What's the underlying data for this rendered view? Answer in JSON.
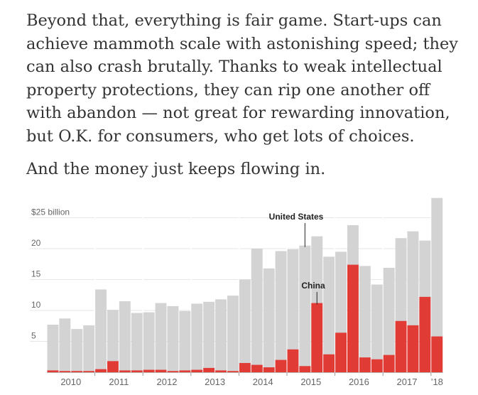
{
  "article": {
    "paragraph_1": "Beyond that, everything is fair game. Start-ups can achieve mammoth scale with astonishing speed; they can also crash brutally. Thanks to weak intellectual property protections, they can rip one another off with abandon — not great for rewarding innovation, but O.K. for consumers, who get lots of choices.",
    "paragraph_2": "And the money just keeps flowing in."
  },
  "colors": {
    "us_bar": "#d3d3d3",
    "china_bar": "#e13b35",
    "text": "#333333",
    "axis_label": "#666666",
    "gridline": "#e6e6e6"
  },
  "chart_data": {
    "type": "bar",
    "title": "",
    "xlabel": "",
    "ylabel": "",
    "ylim": [
      0,
      28
    ],
    "y_ticks": [
      {
        "value": 25,
        "label": "$25 billion"
      },
      {
        "value": 20,
        "label": "20"
      },
      {
        "value": 15,
        "label": "15"
      },
      {
        "value": 10,
        "label": "10"
      },
      {
        "value": 5,
        "label": "5"
      }
    ],
    "year_labels": [
      "2010",
      "2011",
      "2012",
      "2013",
      "2014",
      "2015",
      "2016",
      "2017",
      "’18"
    ],
    "categories": [
      "2010 Q1",
      "2010 Q2",
      "2010 Q3",
      "2010 Q4",
      "2011 Q1",
      "2011 Q2",
      "2011 Q3",
      "2011 Q4",
      "2012 Q1",
      "2012 Q2",
      "2012 Q3",
      "2012 Q4",
      "2013 Q1",
      "2013 Q2",
      "2013 Q3",
      "2013 Q4",
      "2014 Q1",
      "2014 Q2",
      "2014 Q3",
      "2014 Q4",
      "2015 Q1",
      "2015 Q2",
      "2015 Q3",
      "2015 Q4",
      "2016 Q1",
      "2016 Q2",
      "2016 Q3",
      "2016 Q4",
      "2017 Q1",
      "2017 Q2",
      "2017 Q3",
      "2017 Q4",
      "2018 Q1"
    ],
    "series": [
      {
        "name": "United States",
        "values": [
          7.7,
          8.7,
          7.0,
          7.6,
          13.4,
          10.1,
          11.5,
          9.6,
          9.7,
          11.2,
          10.7,
          9.9,
          11.1,
          11.4,
          11.8,
          12.4,
          15.0,
          20.0,
          16.8,
          19.6,
          19.9,
          20.5,
          22.0,
          18.7,
          19.5,
          23.8,
          17.2,
          14.2,
          16.9,
          21.7,
          22.8,
          21.3,
          28.2
        ]
      },
      {
        "name": "China",
        "values": [
          0.3,
          0.2,
          0.2,
          0.2,
          0.5,
          1.8,
          0.3,
          0.3,
          0.4,
          0.4,
          0.2,
          0.3,
          0.4,
          0.7,
          0.3,
          0.2,
          1.5,
          1.2,
          0.8,
          2.0,
          3.7,
          1.0,
          11.2,
          2.9,
          6.4,
          17.4,
          2.4,
          2.1,
          2.8,
          8.3,
          7.6,
          12.2,
          5.8
        ]
      }
    ],
    "annotations": [
      {
        "text": "United States",
        "series": "United States",
        "index": 21
      },
      {
        "text": "China",
        "series": "China",
        "index": 22
      }
    ]
  }
}
